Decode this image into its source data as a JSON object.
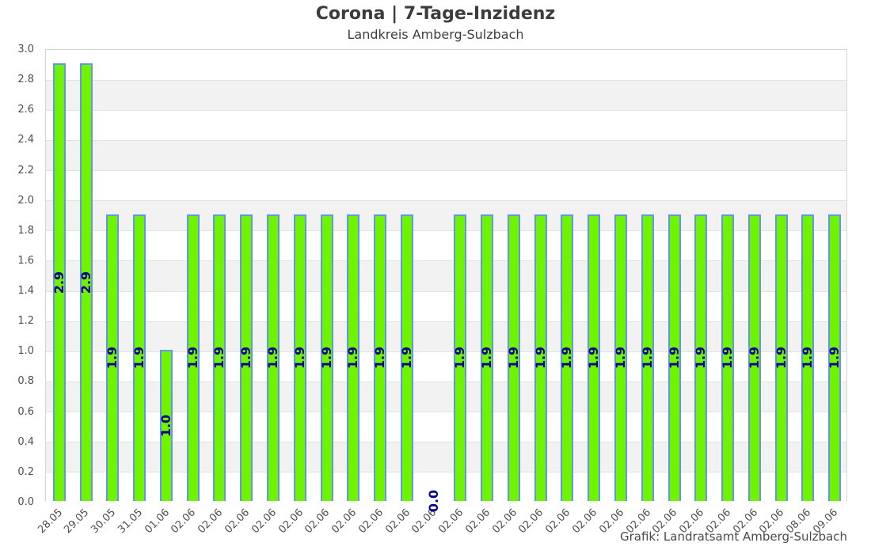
{
  "chart_data": {
    "type": "bar",
    "title": "Corona | 7-Tage-Inzidenz",
    "subtitle": "Landkreis Amberg-Sulzbach",
    "credit": "Grafik: Landratsamt Amberg-Sulzbach",
    "categories": [
      "28.05",
      "29.05",
      "30.05",
      "31.05",
      "01.06",
      "02.06",
      "02.06",
      "02.06",
      "02.06",
      "02.06",
      "02.06",
      "02.06",
      "02.06",
      "02.06",
      "02.06",
      "02.06",
      "02.06",
      "02.06",
      "02.06",
      "02.06",
      "02.06",
      "02.06",
      "02.06",
      "02.06",
      "02.06",
      "02.06",
      "02.06",
      "02.06",
      "08.06",
      "09.06"
    ],
    "values": [
      2.9,
      2.9,
      1.9,
      1.9,
      1.0,
      1.9,
      1.9,
      1.9,
      1.9,
      1.9,
      1.9,
      1.9,
      1.9,
      1.9,
      0.0,
      1.9,
      1.9,
      1.9,
      1.9,
      1.9,
      1.9,
      1.9,
      1.9,
      1.9,
      1.9,
      1.9,
      1.9,
      1.9,
      1.9,
      1.9
    ],
    "bar_labels": [
      "2.9",
      "2.9",
      "1.9",
      "1.9",
      "1.0",
      "1.9",
      "1.9",
      "1.9",
      "1.9",
      "1.9",
      "1.9",
      "1.9",
      "1.9",
      "1.9",
      "0.0",
      "1.9",
      "1.9",
      "1.9",
      "1.9",
      "1.9",
      "1.9",
      "1.9",
      "1.9",
      "1.9",
      "1.9",
      "1.9",
      "1.9",
      "1.9",
      "1.9",
      "1.9"
    ],
    "xlabel": "",
    "ylabel": "",
    "ylim": [
      0.0,
      3.0
    ],
    "ytick_step": 0.2,
    "ytick_labels": [
      "0.0",
      "0.2",
      "0.4",
      "0.6",
      "0.8",
      "1.0",
      "1.2",
      "1.4",
      "1.6",
      "1.8",
      "2.0",
      "2.2",
      "2.4",
      "2.6",
      "2.8",
      "3.0"
    ],
    "legend": "none",
    "grid": "horizontal",
    "background_banding": "alternating-white-gray",
    "bar_label_rotation_deg": 90,
    "xtick_rotation_deg": 45,
    "colors": {
      "bar_fill": "#6FF400",
      "bar_border": "#6495ED",
      "value_label": "#00008B",
      "band": "#F2F2F2",
      "gridline": "#E2E2E2",
      "frame": "#D6D6D6",
      "tick_text": "#4F4F4F",
      "title_text": "#3C3C3C",
      "credit_text": "#4A4A4A"
    }
  }
}
